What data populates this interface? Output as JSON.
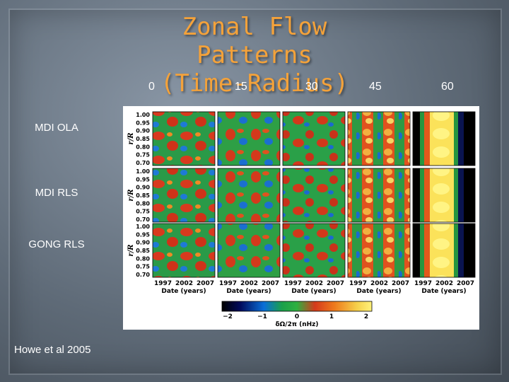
{
  "slide": {
    "title_line1": "Zonal Flow Patterns",
    "title_line2": "(Time-Radius)",
    "credit": "Howe et al 2005"
  },
  "columns": [
    "0",
    "15",
    "30",
    "45",
    "60"
  ],
  "rows": [
    "MDI OLA",
    "MDI RLS",
    "GONG RLS"
  ],
  "figure": {
    "ylabel": "r/R",
    "yticks": [
      "1.00",
      "0.95",
      "0.90",
      "0.85",
      "0.80",
      "0.75",
      "0.70"
    ],
    "xticks": [
      "1997",
      "2002",
      "2007"
    ],
    "xlabel": "Date (years)",
    "colorbar_ticks": [
      "−2",
      "−1",
      "0",
      "1",
      "2"
    ],
    "colorbar_label": "δΩ/2π (nHz)"
  }
}
